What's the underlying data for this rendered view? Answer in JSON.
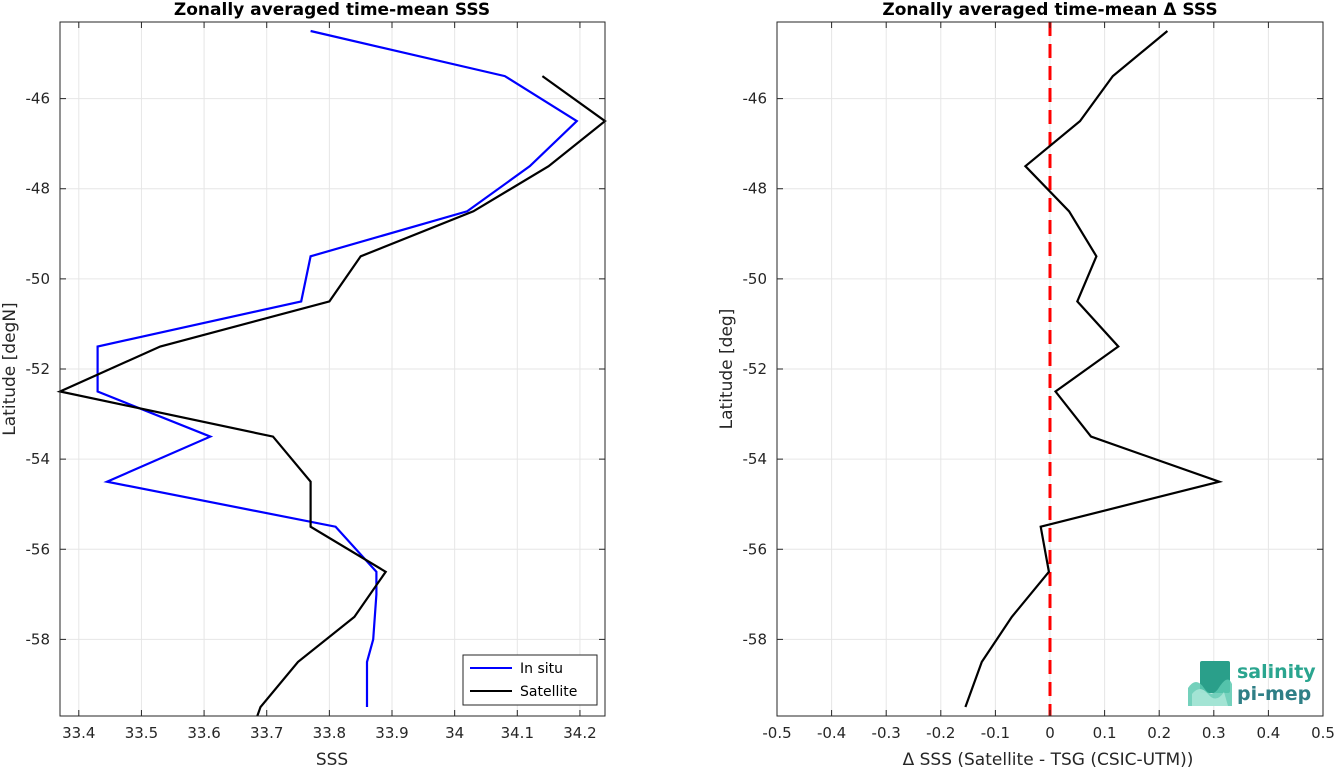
{
  "chart_data": [
    {
      "type": "line",
      "title": "Zonally averaged time-mean SSS",
      "xlabel": "SSS",
      "ylabel": "Latitude [degN]",
      "xlim": [
        33.37,
        34.24
      ],
      "ylim": [
        -59.7,
        -44.3
      ],
      "xticks": [
        33.4,
        33.5,
        33.6,
        33.7,
        33.8,
        33.9,
        34,
        34.1,
        34.2
      ],
      "xtick_labels": [
        "33.4",
        "33.5",
        "33.6",
        "33.7",
        "33.8",
        "33.9",
        "34",
        "34.1",
        "34.2"
      ],
      "yticks": [
        -58,
        -56,
        -54,
        -52,
        -50,
        -48,
        -46
      ],
      "ytick_labels": [
        "-58",
        "-56",
        "-54",
        "-52",
        "-50",
        "-48",
        "-46"
      ],
      "grid": true,
      "legend": {
        "location": "bottom-right",
        "entries": [
          "In situ",
          "Satellite"
        ]
      },
      "series": [
        {
          "name": "In situ",
          "color": "#0000ff",
          "x": [
            33.77,
            34.08,
            34.195,
            34.12,
            34.02,
            33.77,
            33.755,
            33.43,
            33.43,
            33.61,
            33.445,
            33.81,
            33.875,
            33.875,
            33.87,
            33.86,
            33.86
          ],
          "y": [
            -44.5,
            -45.5,
            -46.5,
            -47.5,
            -48.5,
            -49.5,
            -50.5,
            -51.5,
            -52.5,
            -53.5,
            -54.5,
            -55.5,
            -56.5,
            -57.0,
            -58.0,
            -58.5,
            -59.5
          ]
        },
        {
          "name": "Satellite",
          "color": "#000000",
          "x": [
            34.14,
            34.24,
            34.15,
            34.03,
            33.85,
            33.8,
            33.53,
            33.37,
            33.71,
            33.77,
            33.77,
            33.89,
            33.84,
            33.75,
            33.69,
            33.685
          ],
          "y": [
            -45.5,
            -46.5,
            -47.5,
            -48.5,
            -49.5,
            -50.5,
            -51.5,
            -52.5,
            -53.5,
            -54.5,
            -55.5,
            -56.5,
            -57.5,
            -58.5,
            -59.5,
            -59.7
          ]
        }
      ]
    },
    {
      "type": "line",
      "title": "Zonally averaged time-mean Δ SSS",
      "xlabel": "Δ SSS (Satellite - TSG (CSIC-UTM))",
      "ylabel": "Latitude [deg]",
      "xlim": [
        -0.5,
        0.5
      ],
      "ylim": [
        -59.7,
        -44.3
      ],
      "xticks": [
        -0.5,
        -0.4,
        -0.3,
        -0.2,
        -0.1,
        0,
        0.1,
        0.2,
        0.3,
        0.4,
        0.5
      ],
      "xtick_labels": [
        "-0.5",
        "-0.4",
        "-0.3",
        "-0.2",
        "-0.1",
        "0",
        "0.1",
        "0.2",
        "0.3",
        "0.4",
        "0.5"
      ],
      "yticks": [
        -58,
        -56,
        -54,
        -52,
        -50,
        -48,
        -46
      ],
      "ytick_labels": [
        "-58",
        "-56",
        "-54",
        "-52",
        "-50",
        "-48",
        "-46"
      ],
      "grid": true,
      "reference_line": {
        "x": 0,
        "color": "#ff0000",
        "style": "dashed"
      },
      "series": [
        {
          "color": "#000000",
          "x": [
            0.215,
            0.115,
            0.055,
            -0.045,
            0.035,
            0.085,
            0.05,
            0.125,
            0.01,
            0.075,
            0.31,
            -0.017,
            -0.002,
            -0.07,
            -0.125,
            -0.155
          ],
          "y": [
            -44.5,
            -45.5,
            -46.5,
            -47.5,
            -48.5,
            -49.5,
            -50.5,
            -51.5,
            -52.5,
            -53.5,
            -54.5,
            -55.5,
            -56.5,
            -57.5,
            -58.5,
            -59.5
          ]
        }
      ]
    }
  ],
  "logo": {
    "line1": "salinity",
    "line2": "pi-mep",
    "colors": [
      "#2aa58f",
      "#2f7f86"
    ]
  }
}
